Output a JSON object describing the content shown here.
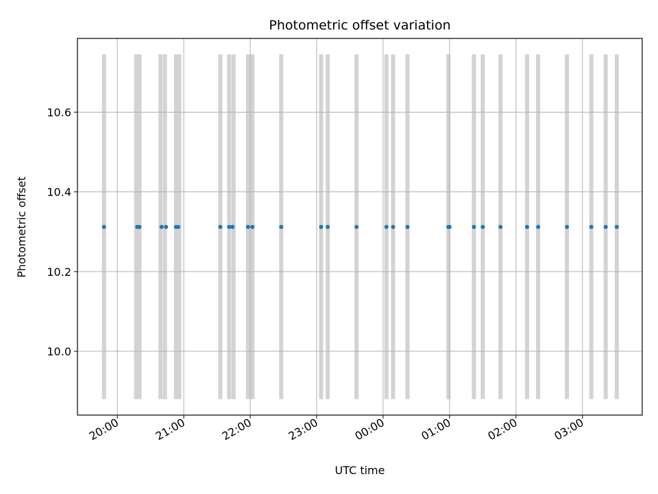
{
  "chart_data": {
    "type": "scatter",
    "title": "Photometric offset variation",
    "xlabel": "UTC time",
    "ylabel": "Photometric offset",
    "x_tick_labels": [
      "20:00",
      "21:00",
      "22:00",
      "23:00",
      "00:00",
      "01:00",
      "02:00",
      "03:00"
    ],
    "y_tick_labels": [
      "10.0",
      "10.2",
      "10.4",
      "10.6"
    ],
    "y_ticks": [
      10.0,
      10.2,
      10.4,
      10.6
    ],
    "xlim": [
      "19:24",
      "27:54"
    ],
    "ylim": [
      9.84,
      10.785
    ],
    "grid": true,
    "colors": {
      "points": "#1f77b4",
      "bands": "#d3d3d3",
      "grid": "#b0b0b0"
    },
    "band_range": [
      9.88,
      10.745
    ],
    "series": [
      {
        "x": [
          "19:48",
          "20:18",
          "20:20",
          "20:40",
          "20:44",
          "20:53",
          "20:55",
          "21:33",
          "21:41",
          "21:44",
          "21:58",
          "22:02",
          "22:28",
          "23:04",
          "23:10",
          "23:36",
          "00:03",
          "00:09",
          "00:22",
          "00:59",
          "01:00",
          "01:22",
          "01:30",
          "01:46",
          "02:10",
          "02:20",
          "02:46",
          "03:08",
          "03:21",
          "03:31"
        ],
        "y": [
          10.312,
          10.312,
          10.312,
          10.312,
          10.312,
          10.312,
          10.312,
          10.312,
          10.312,
          10.312,
          10.312,
          10.312,
          10.312,
          10.312,
          10.312,
          10.312,
          10.312,
          10.312,
          10.312,
          10.312,
          10.312,
          10.312,
          10.312,
          10.312,
          10.312,
          10.312,
          10.312,
          10.312,
          10.312,
          10.312
        ]
      }
    ],
    "bands_x": [
      "19:48",
      "20:17",
      "20:20",
      "20:39",
      "20:43",
      "20:53",
      "20:56",
      "21:33",
      "21:41",
      "21:45",
      "21:58",
      "22:02",
      "22:28",
      "23:04",
      "23:10",
      "23:36",
      "00:03",
      "00:09",
      "00:22",
      "00:59",
      "01:22",
      "01:30",
      "01:46",
      "02:10",
      "02:20",
      "02:46",
      "03:08",
      "03:21",
      "03:31"
    ]
  }
}
